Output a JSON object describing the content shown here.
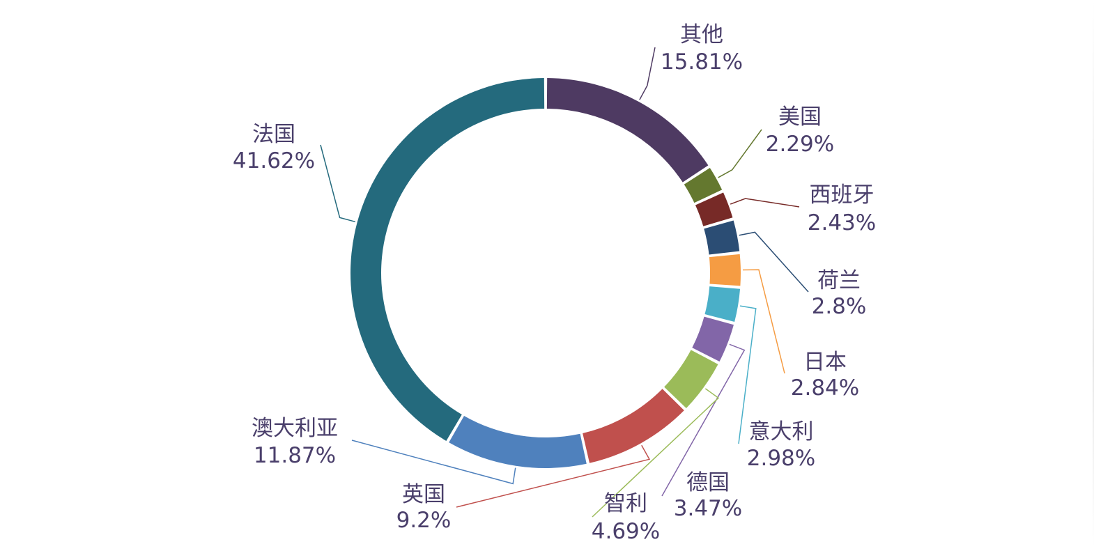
{
  "chart_data": {
    "type": "pie",
    "style": "donut",
    "categories": [
      "其他",
      "美国",
      "西班牙",
      "荷兰",
      "日本",
      "意大利",
      "德国",
      "智利",
      "英国",
      "澳大利亚",
      "法国"
    ],
    "values": [
      15.81,
      2.29,
      2.43,
      2.8,
      2.84,
      2.98,
      3.47,
      4.69,
      9.2,
      11.87,
      41.62
    ],
    "value_labels": [
      "15.81%",
      "2.29%",
      "2.43%",
      "2.8%",
      "2.84%",
      "2.98%",
      "3.47%",
      "4.69%",
      "9.2%",
      "11.87%",
      "41.62%"
    ],
    "unit": "%",
    "colors": [
      "#4e3a62",
      "#64782f",
      "#772a27",
      "#2b4d74",
      "#f59c43",
      "#4aafc8",
      "#8266a8",
      "#9bbb59",
      "#c0504d",
      "#4f81bd",
      "#246a7d"
    ],
    "label_color": "#4a3f6b",
    "legend": "none",
    "start_angle": "12 o'clock",
    "direction": "clockwise"
  }
}
